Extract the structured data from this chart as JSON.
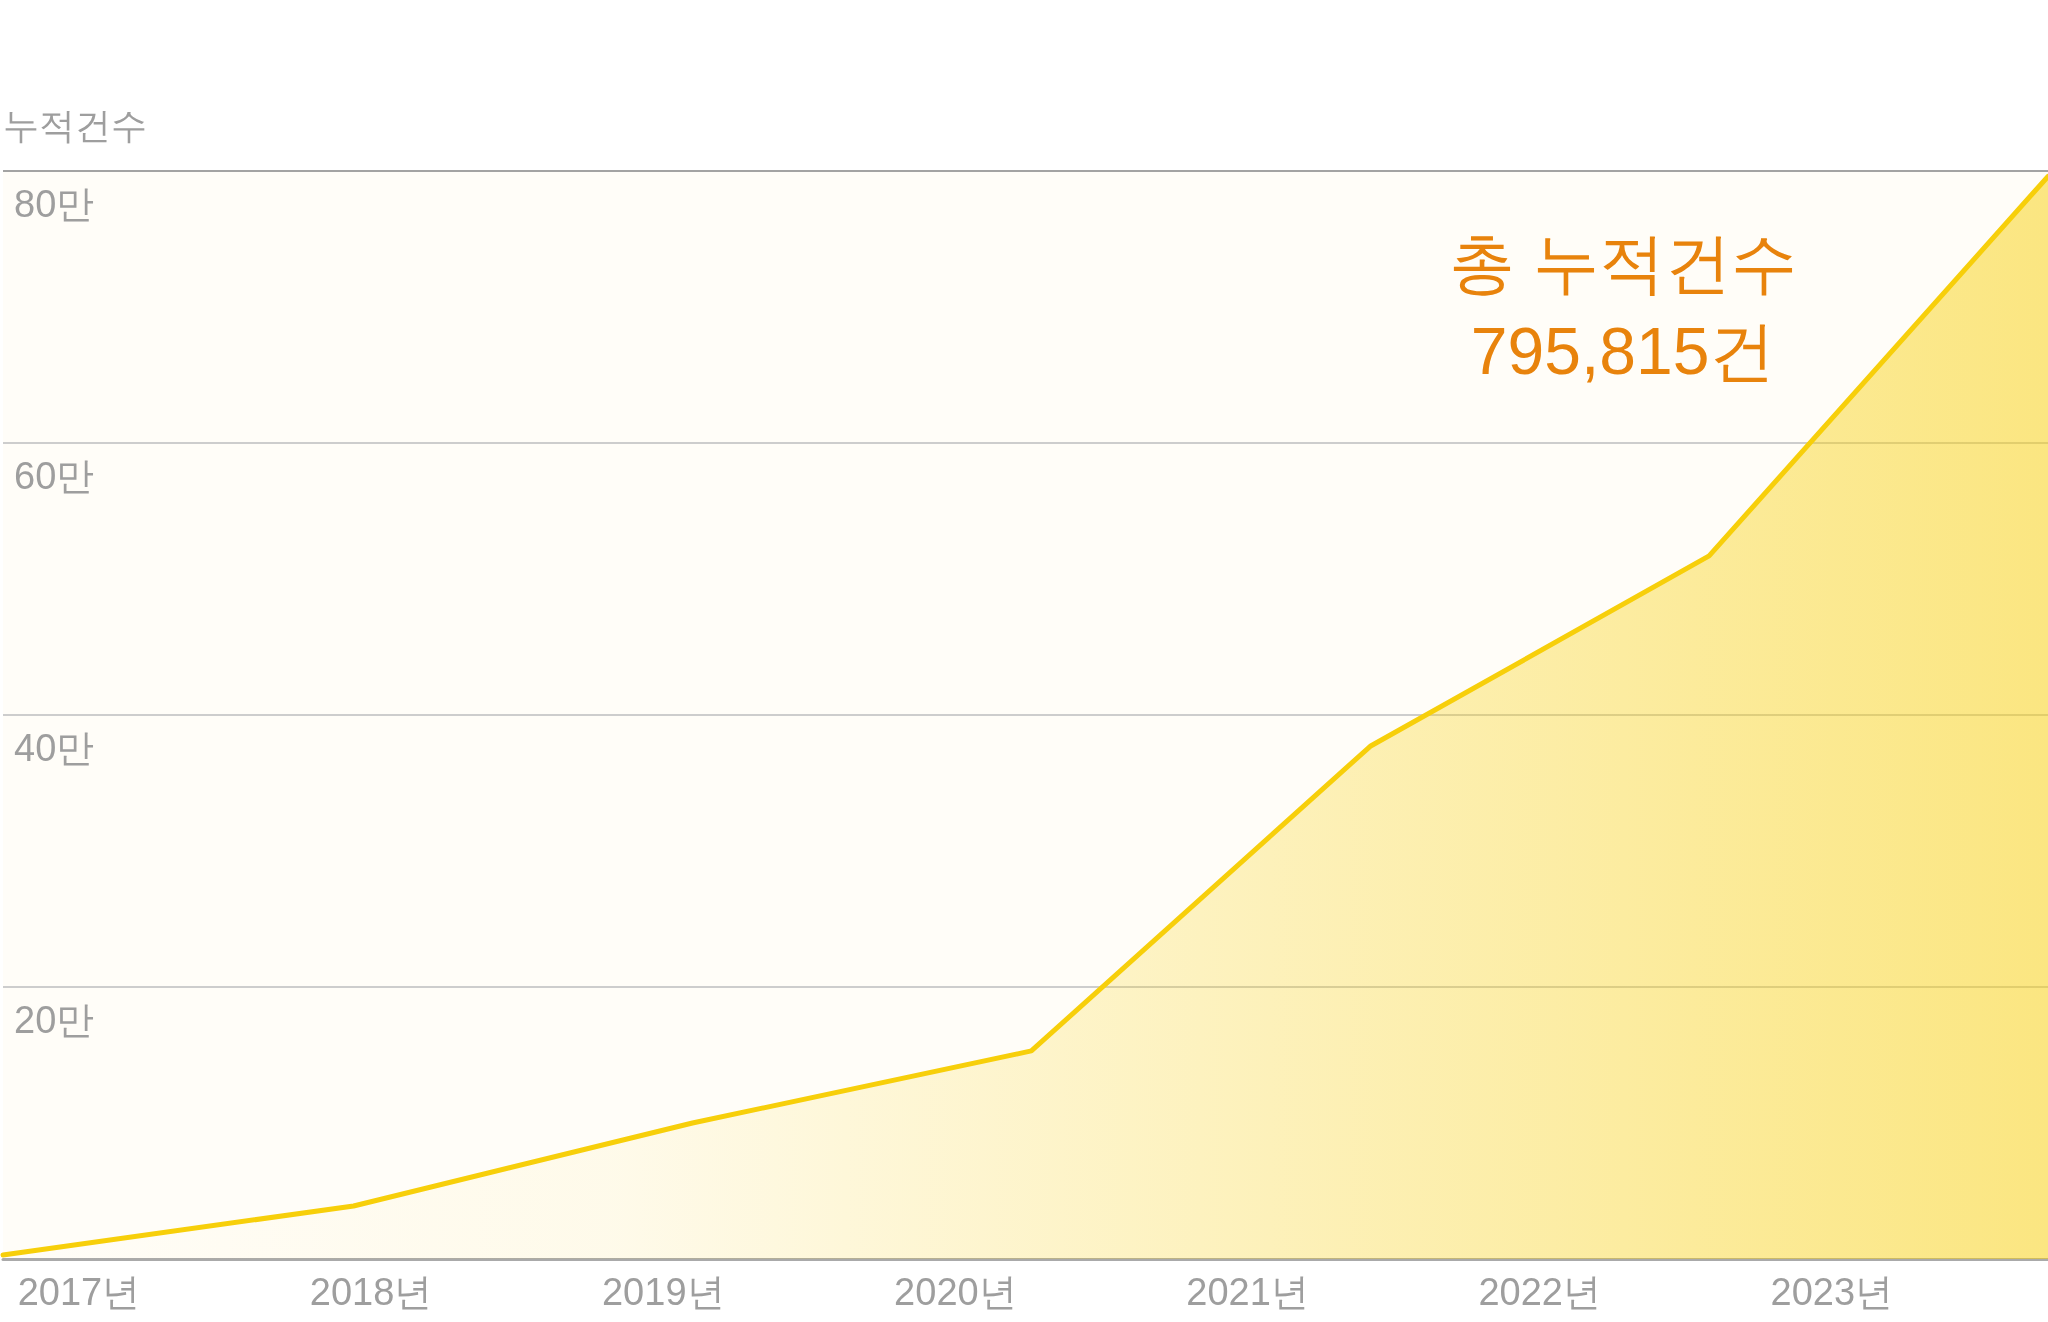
{
  "chart_data": {
    "type": "area",
    "ylabel": "누적건수",
    "x": [
      2016.74,
      2017.94,
      2019.1,
      2020.26,
      2021.42,
      2022.58,
      2023.74
    ],
    "series": [
      {
        "color": "#f7cf0a",
        "values": [
          0.3,
          3.9,
          10,
          15.3,
          37.7,
          51.7,
          79.6
        ]
      }
    ],
    "xlim": [
      2016.74,
      2023.74
    ],
    "xticks": [
      {
        "value": 2017,
        "label": "2017년"
      },
      {
        "value": 2018,
        "label": "2018년"
      },
      {
        "value": 2019,
        "label": "2019년"
      },
      {
        "value": 2020,
        "label": "2020년"
      },
      {
        "value": 2021,
        "label": "2021년"
      },
      {
        "value": 2022,
        "label": "2022년"
      },
      {
        "value": 2023,
        "label": "2023년"
      }
    ],
    "ylim": [
      0,
      80
    ],
    "yticks": [
      {
        "value": 20,
        "label": "20만"
      },
      {
        "value": 40,
        "label": "40만"
      },
      {
        "value": 60,
        "label": "60만"
      },
      {
        "value": 80,
        "label": "80만"
      }
    ],
    "annotations": [
      "총 누적건수\n795,815건"
    ],
    "grid": "y",
    "marker": "none",
    "line_style": "solid"
  }
}
